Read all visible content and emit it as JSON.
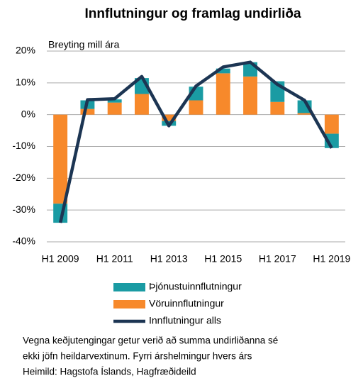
{
  "chart_data": {
    "type": "bar",
    "title": "Innflutningur og framlag undirliða",
    "y_label": "Breyting mill ára",
    "categories": [
      "H1 2009",
      null,
      "H1 2011",
      null,
      "H1 2013",
      null,
      "H1 2015",
      null,
      "H1 2017",
      null,
      "H1 2019"
    ],
    "series": [
      {
        "name": "Þjónustuinnflutningur",
        "type": "bar",
        "color": "#1a9ba3",
        "values": [
          -6,
          2.7,
          1,
          5,
          -1.5,
          4.3,
          1.5,
          4.5,
          6.5,
          4,
          -4.5
        ]
      },
      {
        "name": "Vöruinnflutningur",
        "type": "bar",
        "color": "#f7892b",
        "values": [
          -28,
          1.8,
          3.8,
          6.5,
          -2,
          4.5,
          13,
          12,
          4,
          0.5,
          -6
        ]
      },
      {
        "name": "Innflutningur alls",
        "type": "line",
        "color": "#1c3553",
        "values": [
          -34,
          4.7,
          5,
          12,
          -3.5,
          9,
          15,
          16.5,
          9.5,
          4.5,
          -10.5
        ]
      }
    ],
    "ylim": [
      -40,
      20
    ],
    "yticks": [
      {
        "value": -40,
        "label": "-40%"
      },
      {
        "value": -30,
        "label": "-30%"
      },
      {
        "value": -20,
        "label": "-20%"
      },
      {
        "value": -10,
        "label": "-10%"
      },
      {
        "value": 0,
        "label": "0%"
      },
      {
        "value": 10,
        "label": "10%"
      },
      {
        "value": 20,
        "label": "20%"
      }
    ],
    "grid": true,
    "notes": [
      "Vegna keðjutengingar getur verið að summa undirliðanna sé",
      "ekki jöfn heildarvextinum. Fyrri árshelmingur hvers árs",
      "Heimild: Hagstofa Íslands, Hagfræðideild"
    ]
  }
}
